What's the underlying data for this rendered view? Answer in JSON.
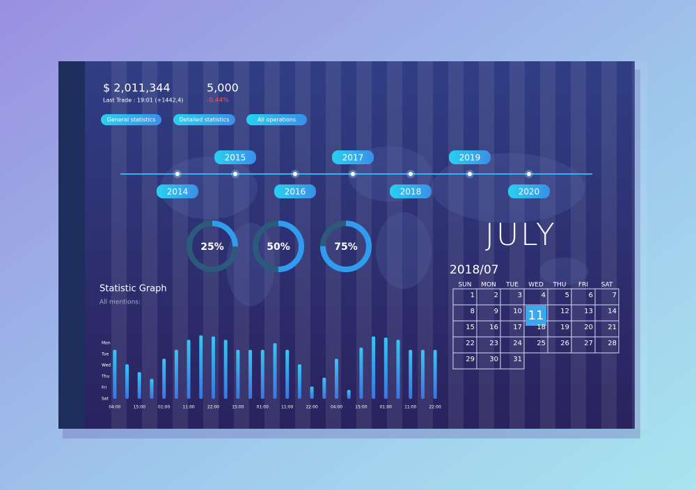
{
  "header": {
    "balance": "$ 2,011,344",
    "last_trade": "Last Trade : 19:01 (+1442,4)",
    "count": "5,000",
    "change": "-0.44%"
  },
  "buttons": [
    "General statistics",
    "Detailed statistics",
    "All operations"
  ],
  "timeline": {
    "years": [
      "2014",
      "2015",
      "2016",
      "2017",
      "2018",
      "2019",
      "2020"
    ]
  },
  "chart_data": [
    {
      "type": "donut",
      "values": [
        25,
        50,
        75
      ],
      "value_labels": [
        "25%",
        "50%",
        "75%"
      ],
      "color": "#2f9cf0"
    },
    {
      "type": "bar",
      "title": "Statistic Graph",
      "subtitle": "All mentions:",
      "color": "#2fb4f0",
      "categories": [
        "04:00",
        null,
        "15:00",
        null,
        "01:00",
        null,
        "11:00",
        null,
        "22:00",
        null,
        "15:00",
        null,
        "01:00",
        null,
        "11:00",
        null,
        "22:00",
        null,
        "04:00",
        null,
        "15:00",
        null,
        "01:00",
        null,
        "11:00",
        null,
        "22:00"
      ],
      "values": [
        4.4,
        3.1,
        2.4,
        1.8,
        3.6,
        4.4,
        5.3,
        5.7,
        5.6,
        5.3,
        4.4,
        4.4,
        4.4,
        5.0,
        4.4,
        3.1,
        1.1,
        1.9,
        3.6,
        0.8,
        4.6,
        5.6,
        5.5,
        5.3,
        4.4,
        4.4,
        4.4
      ],
      "ylim": [
        0,
        6
      ],
      "yticks": [
        {
          "value": 5,
          "label": "Mon"
        },
        {
          "value": 4,
          "label": "Tue"
        },
        {
          "value": 3,
          "label": "Wed"
        },
        {
          "value": 2,
          "label": "Thu"
        },
        {
          "value": 1,
          "label": "Fri"
        },
        {
          "value": 0,
          "label": "Sat"
        }
      ]
    }
  ],
  "calendar": {
    "month": "JULY",
    "period": "2018/07",
    "weekdays": [
      "SUN",
      "MON",
      "TUE",
      "WED",
      "THU",
      "FRI",
      "SAT"
    ],
    "days": [
      1,
      2,
      3,
      4,
      5,
      6,
      7,
      8,
      9,
      10,
      11,
      12,
      13,
      14,
      15,
      16,
      17,
      18,
      19,
      20,
      21,
      22,
      23,
      24,
      25,
      26,
      27,
      28,
      29,
      30,
      31
    ],
    "highlight": 11
  }
}
